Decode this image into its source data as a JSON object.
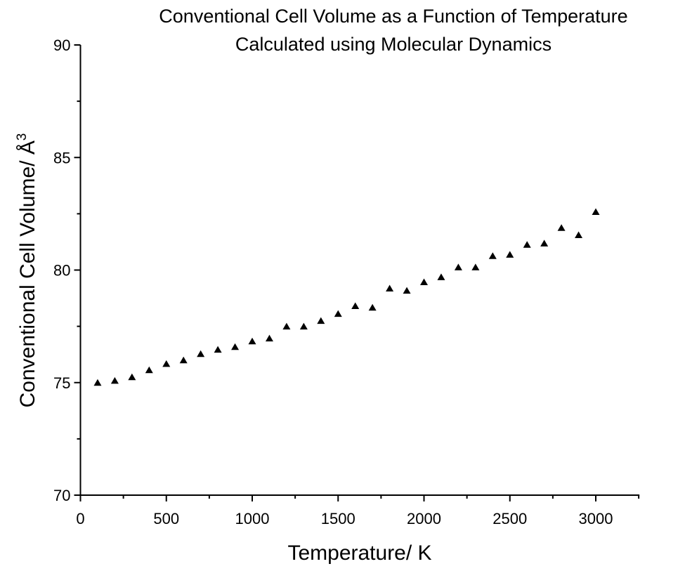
{
  "chart_data": {
    "type": "scatter",
    "title": [
      "Conventional Cell Volume as a Function of Temperature",
      "Calculated using Molecular Dynamics"
    ],
    "xlabel": "Temperature/ K",
    "ylabel": "Conventional Cell Volume/ Å",
    "ylabel_superscript": "3",
    "xlim": [
      0,
      3250
    ],
    "ylim": [
      70,
      90
    ],
    "x_ticks": [
      0,
      500,
      1000,
      1500,
      2000,
      2500,
      3000
    ],
    "x_minor_ticks": [
      250,
      750,
      1250,
      1750,
      2250,
      2750,
      3250
    ],
    "y_ticks": [
      70,
      75,
      80,
      85,
      90
    ],
    "y_minor_ticks": [
      72.5,
      77.5,
      82.5,
      87.5
    ],
    "grid": false,
    "legend": "none",
    "marker": "triangle",
    "marker_color": "#000000",
    "series": [
      {
        "name": "Cell Volume",
        "x": [
          100,
          200,
          300,
          400,
          500,
          600,
          700,
          800,
          900,
          1000,
          1100,
          1200,
          1300,
          1400,
          1500,
          1600,
          1700,
          1800,
          1900,
          2000,
          2100,
          2200,
          2300,
          2400,
          2500,
          2600,
          2700,
          2800,
          2900,
          3000
        ],
        "y": [
          75.0,
          75.09,
          75.25,
          75.56,
          75.84,
          76.0,
          76.28,
          76.47,
          76.59,
          76.84,
          76.97,
          77.5,
          77.5,
          77.75,
          78.06,
          78.41,
          78.34,
          79.19,
          79.09,
          79.47,
          79.69,
          80.13,
          80.13,
          80.63,
          80.69,
          81.13,
          81.19,
          81.88,
          81.56,
          82.59
        ]
      }
    ]
  }
}
